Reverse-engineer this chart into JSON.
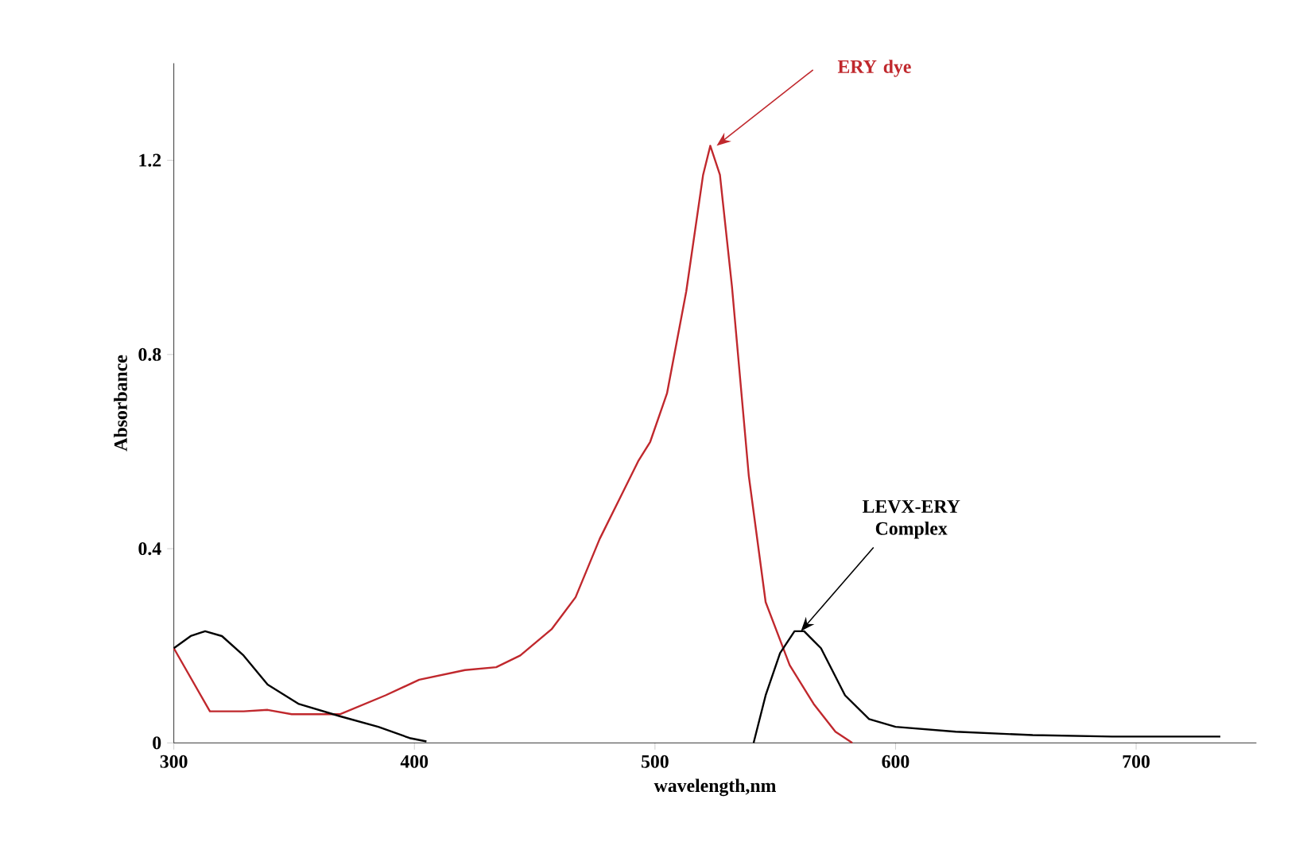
{
  "chart_data": {
    "type": "line",
    "xlabel": "wavelength,nm",
    "ylabel": "Absorbance",
    "xlim": [
      300,
      750
    ],
    "ylim": [
      0,
      1.4
    ],
    "xticks": [
      300,
      400,
      500,
      600,
      700
    ],
    "yticks": [
      0,
      0.4,
      0.8,
      1.2
    ],
    "grid": false,
    "legend": false,
    "marker": "none",
    "line_style": "solid",
    "series": [
      {
        "name": "ERY  dye",
        "color": "#c0282d",
        "x": [
          300,
          315,
          329,
          339,
          349,
          369,
          388,
          402,
          421,
          434,
          444,
          457,
          467,
          477,
          486,
          493,
          498,
          505,
          513,
          520,
          523,
          527,
          532,
          539,
          546,
          556,
          566,
          575,
          582
        ],
        "values": [
          0.195,
          0.065,
          0.065,
          0.068,
          0.059,
          0.059,
          0.098,
          0.13,
          0.15,
          0.156,
          0.18,
          0.234,
          0.3,
          0.42,
          0.51,
          0.58,
          0.62,
          0.72,
          0.93,
          1.17,
          1.23,
          1.17,
          0.94,
          0.55,
          0.29,
          0.16,
          0.08,
          0.023,
          0
        ]
      },
      {
        "name": "LEVX-ERY Complex",
        "color": "#000000",
        "x": [
          300,
          307,
          313,
          320,
          329,
          339,
          352,
          369,
          385,
          398,
          405,
          470,
          541,
          546,
          552,
          558,
          562,
          569,
          579,
          589,
          600,
          625,
          657,
          690,
          735
        ],
        "values": [
          0.195,
          0.22,
          0.23,
          0.22,
          0.18,
          0.12,
          0.08,
          0.055,
          0.033,
          0.01,
          0.003,
          null,
          0,
          0.098,
          0.185,
          0.23,
          0.23,
          0.195,
          0.098,
          0.049,
          0.033,
          0.023,
          0.016,
          0.013,
          0.013
        ]
      }
    ]
  }
}
